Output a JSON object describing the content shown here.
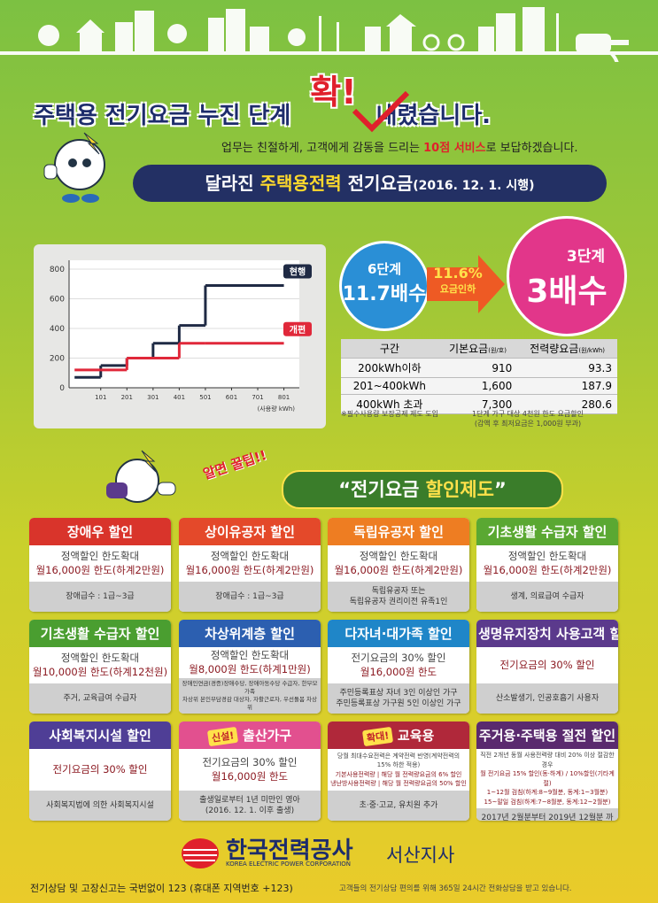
{
  "header": {
    "title_start": "주택용 전기요금 누진 단계",
    "title_accent": "확!",
    "title_end": "내렸습니다."
  },
  "tagline": {
    "before": "업무는 친절하게, 고객에게 감동을 드리는 ",
    "highlight": "10점 서비스",
    "after": "로 보답하겠습니다."
  },
  "banner": {
    "before": "달라진 ",
    "highlight": "주택용전력",
    "after": " 전기요금",
    "date": "(2016. 12. 1. 시행)"
  },
  "chart": {
    "type": "step",
    "x": [
      1,
      101,
      201,
      301,
      401,
      501,
      801
    ],
    "series": [
      {
        "name": "현행",
        "color": "#1f2a44",
        "values": [
          70,
          150,
          200,
          300,
          420,
          690,
          690
        ]
      },
      {
        "name": "개편",
        "color": "#e0283a",
        "values": [
          120,
          120,
          200,
          200,
          300,
          300,
          300
        ]
      }
    ],
    "xlim": [
      -20,
      860
    ],
    "ylim": [
      0,
      860
    ],
    "xticks": [
      101,
      201,
      301,
      401,
      501,
      601,
      701,
      801
    ],
    "yticks": [
      0,
      200,
      400,
      600,
      800
    ],
    "xlabel": "(사용량 kWh)",
    "grid": true
  },
  "old_plan": {
    "steps": "6단계",
    "ratio": "11.7배수"
  },
  "change": {
    "percent": "11.6%",
    "label": "요금인하"
  },
  "new_plan": {
    "steps": "3단계",
    "ratio": "3배수"
  },
  "table": {
    "headers": [
      {
        "text": "구간",
        "unit": ""
      },
      {
        "text": "기본요금",
        "unit": "(원/호)"
      },
      {
        "text": "전력량요금",
        "unit": "(원/kWh)"
      }
    ],
    "rows": [
      [
        "200kWh이하",
        "910",
        "93.3"
      ],
      [
        "201~400kWh",
        "1,600",
        "187.9"
      ],
      [
        "400kWh 초과",
        "7,300",
        "280.6"
      ]
    ]
  },
  "notes": {
    "left": "※필수사용량 보장공제 제도 도입",
    "right": "1단계 가구 대상 4천원 한도 요금할인",
    "right_sub": "(감액 후 최저요금은 1,000원 부과)"
  },
  "tip": "알면 꿀팁!!",
  "section": {
    "open": "“전기요금 ",
    "highlight": "할인제도",
    "close": "”"
  },
  "cards": [
    {
      "title": "장애우 할인",
      "color": "#d9342b",
      "body": [
        "정액할인 한도확대",
        "월16,000원 한도(하계2만원)"
      ],
      "note": [
        "장애급수 : 1급~3급"
      ]
    },
    {
      "title": "상이유공자 할인",
      "color": "#e4492a",
      "body": [
        "정액할인 한도확대",
        "월16,000원 한도(하계2만원)"
      ],
      "note": [
        "장애급수 : 1급~3급"
      ]
    },
    {
      "title": "독립유공자 할인",
      "color": "#ee7d22",
      "body": [
        "정액할인 한도확대",
        "월16,000원 한도(하계2만원)"
      ],
      "note": [
        "독립유공자 또는",
        "독립유공자 권리이전 유족1인"
      ]
    },
    {
      "title": "기초생활 수급자 할인",
      "color": "#5aa832",
      "body": [
        "정액할인 한도확대",
        "월16,000원 한도(하계2만원)"
      ],
      "note": [
        "생계, 의료급여 수급자"
      ]
    },
    {
      "title": "기초생활 수급자 할인",
      "color": "#4a9e30",
      "body": [
        "정액할인 한도확대",
        "월10,000원 한도(하계12천원)"
      ],
      "note": [
        "주거, 교육급여 수급자"
      ]
    },
    {
      "title": "차상위계층 할인",
      "color": "#2c5fb0",
      "body": [
        "정액할인 한도확대",
        "월8,000원 한도(하계1만원)"
      ],
      "note": [
        "장애인연금(경증)장애수당, 장애아동수당 수급자, 한부모가족",
        "차상위 본인부담경감 대상자, 자활근로자, 우선돌봄 차상위"
      ]
    },
    {
      "title": "다자녀·대가족 할인",
      "color": "#1f86c8",
      "body": [
        "전기요금의 30% 할인",
        "월16,000원 한도"
      ],
      "note": [
        "주민등록표상 자녀 3인 이상인 가구",
        "주민등록표상 가구원 5인 이상인 가구"
      ]
    },
    {
      "title": "생명유지장치 사용고객 할인",
      "color": "#5b3a8c",
      "body": [
        "전기요금의 30% 할인"
      ],
      "note": [
        "산소발생기, 인공호흡기 사용자"
      ]
    },
    {
      "title": "사회복지시설 할인",
      "color": "#4f3e96",
      "body": [
        "전기요금의 30% 할인"
      ],
      "note": [
        "사회복지법에 의한 사회복지시설"
      ]
    },
    {
      "title": "출산가구",
      "badge": "신설!",
      "color": "#e2508f",
      "body": [
        "전기요금의 30% 할인",
        "월16,000원 한도"
      ],
      "note": [
        "출생일로부터 1년 미만인 영아",
        "(2016. 12. 1. 이후 출생)"
      ]
    },
    {
      "title": "교육용",
      "badge": "확대!",
      "color": "#b0283a",
      "body": [
        "당월 최대수요전력은 계약전력 반영(계약전력의 15% 하한 적용)",
        "기본사용전력량 | 해당 월 전력량요금의 6% 할인",
        "냉난방사용전력량 | 해당 월 전력량요금의 50% 할인"
      ],
      "note": [
        "초·중·고교, 유치원 추가"
      ]
    },
    {
      "title": "주거용·주택용 절전 할인",
      "color": "#5a2a6e",
      "body": [
        "직전 2개년 동월 사용전력량 대비 20% 이상 절감한 경우",
        "월 전기요금 15% 할인(동·하계) / 10%할인(기타계절)",
        "1~12월 검침(하계:8~9월분, 동계:1~3월분)",
        "15~말일 검침(하계:7~8월분, 동계:12~2월분)"
      ],
      "note": [
        "2017년 2월분부터 2019년 12월분 까지"
      ]
    }
  ],
  "footer": {
    "logo": "한국전력공사",
    "logo_en": "KOREA ELECTRIC POWER CORPORATION",
    "branch": "서산지사",
    "contact": "전기상담 및 고장신고는 국번없이 123 (휴대폰 지역번호 +123)",
    "service": "고객들의 전기상담 편의를 위해 365일 24시간 전화상담을 받고 있습니다."
  }
}
